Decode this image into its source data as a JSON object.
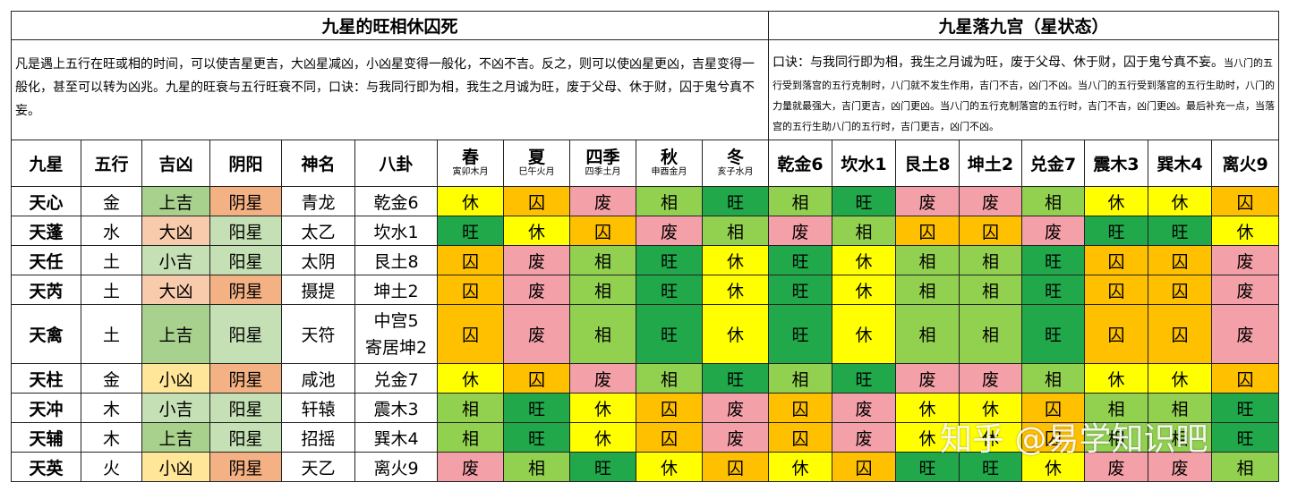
{
  "left_title": "九星的旺相休囚死",
  "right_title": "九星落九宫（星状态）",
  "left_desc": "凡是遇上五行在旺或相的时间，可以使吉星更吉，大凶星减凶，小凶星变得一般化，不凶不吉。反之，则可以使凶星更凶，吉星变得一般化，甚至可以转为凶兆。九星的旺衰与五行旺衰不同，口诀：与我同行即为相，我生之月诚为旺，废于父母、休于财，囚于鬼兮真不妄。",
  "right_desc_main": "口诀：与我同行即为相，我生之月诚为旺，废于父母、休于财，囚于鬼兮真不妄。",
  "right_desc_small": "当八门的五行受到落宫的五行克制时，八门就不发生作用，吉门不吉，凶门不凶。当八门的五行受到落宫的五行生助时，八门的力量就最强大，吉门更吉，凶门更凶。当八门的五行克制落宫的五行时，吉门不吉，凶门更凶。最后补充一点，当落宫的五行生助八门的五行时，吉门更吉，凶门不凶。",
  "headers": {
    "star": "九星",
    "wuxing": "五行",
    "jixiong": "吉凶",
    "yinyang": "阴阳",
    "shen": "神名",
    "bagua": "八卦",
    "seasons": [
      {
        "name": "春",
        "sub": "寅卯木月"
      },
      {
        "name": "夏",
        "sub": "巳午火月"
      },
      {
        "name": "四季",
        "sub": "四季土月"
      },
      {
        "name": "秋",
        "sub": "申酉金月"
      },
      {
        "name": "冬",
        "sub": "亥子水月"
      }
    ],
    "palaces": [
      "乾金6",
      "坎水1",
      "艮土8",
      "坤土2",
      "兑金7",
      "震木3",
      "巽木4",
      "离火9"
    ]
  },
  "colors": {
    "休": "#ffff00",
    "囚": "#ffc000",
    "废": "#f4a0a8",
    "相": "#92d050",
    "旺": "#20a84a",
    "上吉": "#a9d18e",
    "小吉": "#c5e0b4",
    "大凶": "#f8cbad",
    "小凶": "#ffe699",
    "阴星": "#f4b183",
    "阳星": "#c5e0b4"
  },
  "rows": [
    {
      "star": "天心",
      "wuxing": "金",
      "jixiong": "上吉",
      "yinyang": "阴星",
      "shen": "青龙",
      "gua": "乾金6",
      "gua2": "",
      "seasons": [
        "休",
        "囚",
        "废",
        "相",
        "旺"
      ],
      "palaces": [
        "相",
        "旺",
        "废",
        "废",
        "相",
        "休",
        "休",
        "囚"
      ]
    },
    {
      "star": "天蓬",
      "wuxing": "水",
      "jixiong": "大凶",
      "yinyang": "阳星",
      "shen": "太乙",
      "gua": "坎水1",
      "gua2": "",
      "seasons": [
        "旺",
        "休",
        "囚",
        "废",
        "相"
      ],
      "palaces": [
        "废",
        "相",
        "囚",
        "囚",
        "废",
        "旺",
        "旺",
        "休"
      ]
    },
    {
      "star": "天任",
      "wuxing": "土",
      "jixiong": "小吉",
      "yinyang": "阳星",
      "shen": "太阴",
      "gua": "艮土8",
      "gua2": "",
      "seasons": [
        "囚",
        "废",
        "相",
        "旺",
        "休"
      ],
      "palaces": [
        "旺",
        "休",
        "相",
        "相",
        "旺",
        "囚",
        "囚",
        "废"
      ]
    },
    {
      "star": "天芮",
      "wuxing": "土",
      "jixiong": "大凶",
      "yinyang": "阴星",
      "shen": "摄提",
      "gua": "坤土2",
      "gua2": "",
      "seasons": [
        "囚",
        "废",
        "相",
        "旺",
        "休"
      ],
      "palaces": [
        "旺",
        "休",
        "相",
        "相",
        "旺",
        "囚",
        "囚",
        "废"
      ]
    },
    {
      "star": "天禽",
      "wuxing": "土",
      "jixiong": "上吉",
      "yinyang": "阳星",
      "shen": "天符",
      "gua": "中宫5",
      "gua2": "寄居坤2",
      "seasons": [
        "囚",
        "废",
        "相",
        "旺",
        "休"
      ],
      "palaces": [
        "旺",
        "休",
        "相",
        "相",
        "旺",
        "囚",
        "囚",
        "废"
      ]
    },
    {
      "star": "天柱",
      "wuxing": "金",
      "jixiong": "小凶",
      "yinyang": "阴星",
      "shen": "咸池",
      "gua": "兑金7",
      "gua2": "",
      "seasons": [
        "休",
        "囚",
        "废",
        "相",
        "旺"
      ],
      "palaces": [
        "相",
        "旺",
        "废",
        "废",
        "相",
        "休",
        "休",
        "囚"
      ]
    },
    {
      "star": "天冲",
      "wuxing": "木",
      "jixiong": "小吉",
      "yinyang": "阳星",
      "shen": "轩辕",
      "gua": "震木3",
      "gua2": "",
      "seasons": [
        "相",
        "旺",
        "休",
        "囚",
        "废"
      ],
      "palaces": [
        "囚",
        "废",
        "休",
        "休",
        "囚",
        "相",
        "相",
        "旺"
      ]
    },
    {
      "star": "天辅",
      "wuxing": "木",
      "jixiong": "上吉",
      "yinyang": "阳星",
      "shen": "招摇",
      "gua": "巽木4",
      "gua2": "",
      "seasons": [
        "相",
        "旺",
        "休",
        "囚",
        "废"
      ],
      "palaces": [
        "囚",
        "废",
        "休",
        "休",
        "囚",
        "相",
        "相",
        "旺"
      ]
    },
    {
      "star": "天英",
      "wuxing": "火",
      "jixiong": "小凶",
      "yinyang": "阴星",
      "shen": "天乙",
      "gua": "离火9",
      "gua2": "",
      "seasons": [
        "废",
        "相",
        "旺",
        "休",
        "囚"
      ],
      "palaces": [
        "休",
        "囚",
        "旺",
        "旺",
        "休",
        "废",
        "废",
        "相"
      ]
    }
  ],
  "watermark": "知乎 @易学知识吧"
}
